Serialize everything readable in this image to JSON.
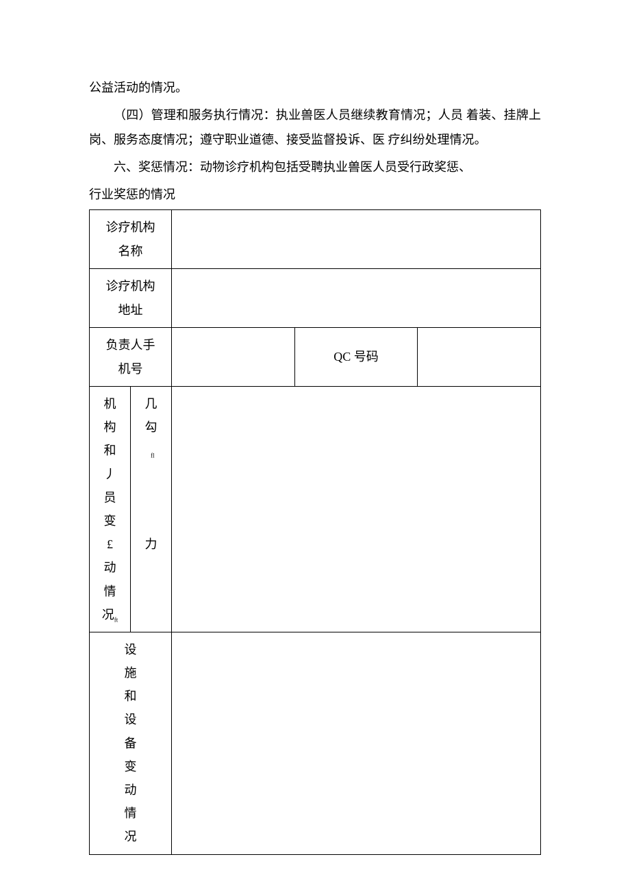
{
  "paragraphs": {
    "p1": "公益活动的情况。",
    "p2": "（四）管理和服务执行情况：执业兽医人员继续教育情况；人员 着装、挂牌上岗、服务态度情况；遵守职业道德、接受监督投诉、医 疗纠纷处理情况。",
    "p3": "六、奖惩情况：动物诊疗机构包括受聘执业兽医人员受行政奖惩、",
    "p4": "行业奖惩的情况"
  },
  "table": {
    "row1_label": "诊疗机构\n名称",
    "row1_value": "",
    "row2_label": "诊疗机构\n地址",
    "row2_value": "",
    "row3_label_a": "负责人手\n机号",
    "row3_value_a": "",
    "row3_label_b": "QC 号码",
    "row3_value_b": "",
    "row4_col1_chars": [
      "机",
      "构",
      "和",
      "丿",
      "员",
      "变",
      "£",
      "动",
      "情",
      "况"
    ],
    "row4_col2_chars": [
      "几",
      "勾",
      "",
      "",
      "",
      "",
      "力",
      "",
      "",
      ""
    ],
    "row4_col1_sub": [
      "",
      "",
      "",
      "",
      "",
      "",
      "",
      "",
      "",
      "ft"
    ],
    "row4_col2_sub": [
      "",
      "",
      "fl",
      "",
      "",
      "",
      "",
      "",
      "",
      ""
    ],
    "row4_value": "",
    "row5_label_chars": [
      "设",
      "施",
      "和",
      "设",
      "备",
      "变",
      "动",
      "情",
      "况"
    ],
    "row5_value": ""
  },
  "styling": {
    "page_bg": "#ffffff",
    "text_color": "#000000",
    "border_color": "#000000",
    "body_fontsize": 18,
    "line_height": 2.0,
    "font_family": "SimSun"
  }
}
